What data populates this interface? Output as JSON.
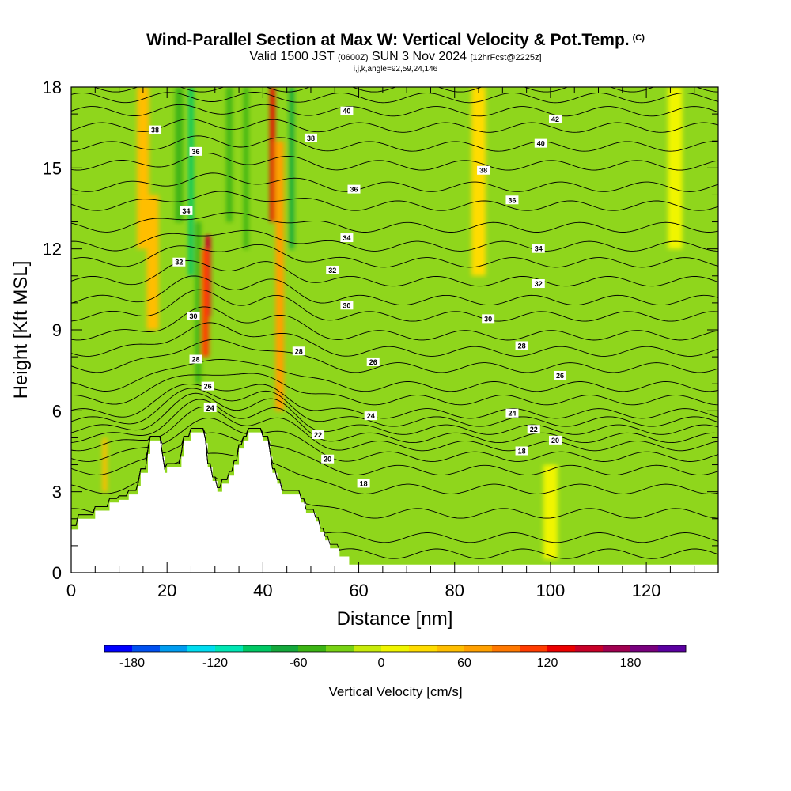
{
  "header": {
    "title": "Wind-Parallel Section at Max W: Vertical Velocity & Pot.Temp.",
    "title_mark": "(C)",
    "valid_prefix": "Valid 1500 JST",
    "valid_utc": "(0600Z)",
    "valid_date": "SUN 3 Nov 2024",
    "forecast": "[12hrFcst@2225z]",
    "indices": "i,j,k,angle=92,59,24,146"
  },
  "chart_data": {
    "type": "heatmap",
    "xlabel": "Distance [nm]",
    "ylabel": "Height [Kft MSL]",
    "xlim": [
      0,
      135
    ],
    "ylim": [
      0,
      18
    ],
    "x_ticks": [
      "0",
      "20",
      "40",
      "60",
      "80",
      "100",
      "120"
    ],
    "x_tick_values": [
      0,
      20,
      40,
      60,
      80,
      100,
      120
    ],
    "y_ticks": [
      "0",
      "3",
      "6",
      "9",
      "12",
      "15",
      "18"
    ],
    "y_tick_values": [
      0,
      3,
      6,
      9,
      12,
      15,
      18
    ],
    "x_minor_step": 5,
    "y_minor_step": 1,
    "background_color": "#8fd61c",
    "colorbar": {
      "title": "Vertical Velocity [cm/s]",
      "min": -200,
      "max": 220,
      "step": 20,
      "tick_labels": [
        "-180",
        "-120",
        "-60",
        "0",
        "60",
        "120",
        "180"
      ],
      "tick_values": [
        -180,
        -120,
        -60,
        0,
        60,
        120,
        180
      ],
      "colors": [
        "#0000ff",
        "#0050f0",
        "#009cf0",
        "#00dcf0",
        "#00e6b4",
        "#00c864",
        "#14a83c",
        "#3cb414",
        "#78d214",
        "#c8eb0a",
        "#f0f500",
        "#ffdc00",
        "#ffbe00",
        "#ffa000",
        "#ff7800",
        "#ff3c00",
        "#eb0000",
        "#c80028",
        "#a00050",
        "#78007d",
        "#5a00a0"
      ]
    },
    "velocity_field": [
      {
        "x": 15,
        "y_range": [
          12,
          18
        ],
        "w": 50,
        "width": 2.5
      },
      {
        "x": 17,
        "y_range": [
          9,
          14
        ],
        "w": 40,
        "width": 2.5
      },
      {
        "x": 22.5,
        "y_range": [
          13,
          18
        ],
        "w": -50,
        "width": 1.6
      },
      {
        "x": 25,
        "y_range": [
          11,
          18
        ],
        "w": -100,
        "width": 1.0
      },
      {
        "x": 26.5,
        "y_range": [
          7,
          13
        ],
        "w": -55,
        "width": 1.2
      },
      {
        "x": 28.5,
        "y_range": [
          9.5,
          12.5
        ],
        "w": 150,
        "width": 1.2
      },
      {
        "x": 28,
        "y_range": [
          8,
          12
        ],
        "w": 100,
        "width": 1.5
      },
      {
        "x": 33,
        "y_range": [
          13,
          18
        ],
        "w": -60,
        "width": 1.2
      },
      {
        "x": 36.5,
        "y_range": [
          12,
          18
        ],
        "w": -60,
        "width": 1.0
      },
      {
        "x": 42,
        "y_range": [
          13,
          18
        ],
        "w": 130,
        "width": 1.0
      },
      {
        "x": 43.5,
        "y_range": [
          6,
          16
        ],
        "w": 60,
        "width": 1.8
      },
      {
        "x": 46,
        "y_range": [
          12,
          18
        ],
        "w": -75,
        "width": 1.0
      },
      {
        "x": 7,
        "y_range": [
          3,
          5
        ],
        "w": 40,
        "width": 1.0
      },
      {
        "x": 85,
        "y_range": [
          11,
          18
        ],
        "w": 20,
        "width": 3.0
      },
      {
        "x": 100,
        "y_range": [
          0.5,
          4
        ],
        "w": 15,
        "width": 3.0
      },
      {
        "x": 126,
        "y_range": [
          12,
          18
        ],
        "w": 15,
        "width": 3.0
      }
    ],
    "terrain": [
      [
        0,
        1.6
      ],
      [
        1.5,
        1.6
      ],
      [
        1.5,
        2
      ],
      [
        5,
        2
      ],
      [
        5,
        2.3
      ],
      [
        8,
        2.3
      ],
      [
        8,
        2.6
      ],
      [
        10,
        2.6
      ],
      [
        10,
        2.7
      ],
      [
        12,
        2.7
      ],
      [
        12,
        2.9
      ],
      [
        14,
        2.9
      ],
      [
        14,
        3.2
      ],
      [
        14.5,
        3.2
      ],
      [
        14.5,
        3.7
      ],
      [
        16,
        3.7
      ],
      [
        16,
        4.4
      ],
      [
        16.5,
        4.4
      ],
      [
        16.5,
        4.9
      ],
      [
        19,
        4.9
      ],
      [
        19,
        4.3
      ],
      [
        19.5,
        4.3
      ],
      [
        19.5,
        3.7
      ],
      [
        20,
        3.7
      ],
      [
        20,
        3.9
      ],
      [
        23,
        3.9
      ],
      [
        23,
        4.3
      ],
      [
        23.5,
        4.3
      ],
      [
        23.5,
        4.9
      ],
      [
        25,
        4.9
      ],
      [
        25,
        5.2
      ],
      [
        28,
        5.2
      ],
      [
        28,
        4.8
      ],
      [
        28.5,
        4.8
      ],
      [
        28.5,
        3.9
      ],
      [
        29.5,
        3.9
      ],
      [
        29.5,
        3.4
      ],
      [
        30.5,
        3.4
      ],
      [
        30.5,
        3.0
      ],
      [
        31.5,
        3.0
      ],
      [
        31.5,
        3.3
      ],
      [
        33,
        3.3
      ],
      [
        33,
        3.6
      ],
      [
        34,
        3.6
      ],
      [
        34,
        4.0
      ],
      [
        35,
        4.0
      ],
      [
        35,
        4.6
      ],
      [
        36,
        4.6
      ],
      [
        36,
        4.9
      ],
      [
        37,
        4.9
      ],
      [
        37,
        5.2
      ],
      [
        40,
        5.2
      ],
      [
        40,
        4.9
      ],
      [
        41.5,
        4.9
      ],
      [
        41.5,
        4.3
      ],
      [
        42,
        4.3
      ],
      [
        42,
        3.7
      ],
      [
        43,
        3.7
      ],
      [
        43,
        3.3
      ],
      [
        44,
        3.3
      ],
      [
        44,
        2.9
      ],
      [
        48,
        2.9
      ],
      [
        48,
        2.6
      ],
      [
        49,
        2.6
      ],
      [
        49,
        2.2
      ],
      [
        51,
        2.2
      ],
      [
        51,
        1.9
      ],
      [
        52,
        1.9
      ],
      [
        52,
        1.5
      ],
      [
        53,
        1.5
      ],
      [
        53,
        1.2
      ],
      [
        54,
        1.2
      ],
      [
        54,
        0.9
      ],
      [
        56,
        0.9
      ],
      [
        56,
        0.6
      ],
      [
        58,
        0.6
      ],
      [
        58,
        0.3
      ],
      [
        135,
        0.3
      ]
    ],
    "isentrope_values": [
      14,
      15,
      16,
      17,
      18,
      19,
      20,
      21,
      22,
      23,
      24,
      25,
      26,
      27,
      28,
      29,
      30,
      31,
      32,
      33,
      34,
      35,
      36,
      37,
      38,
      39,
      40,
      41,
      42,
      43
    ],
    "isentrope_heights": [
      0.7,
      1.3,
      2.2,
      3.1,
      3.8,
      4.3,
      4.7,
      5.0,
      5.3,
      5.6,
      5.9,
      6.4,
      6.9,
      7.6,
      8.2,
      8.8,
      9.5,
      10.1,
      10.8,
      11.5,
      12.1,
      12.8,
      13.6,
      14.3,
      15.1,
      15.8,
      16.5,
      17.1,
      17.6,
      18.0
    ],
    "contour_labels": [
      {
        "text": "38",
        "x": 17.5,
        "y": 16.4
      },
      {
        "text": "36",
        "x": 26,
        "y": 15.6
      },
      {
        "text": "34",
        "x": 24,
        "y": 13.4
      },
      {
        "text": "32",
        "x": 22.5,
        "y": 11.5
      },
      {
        "text": "30",
        "x": 25.5,
        "y": 9.5
      },
      {
        "text": "28",
        "x": 26,
        "y": 7.9
      },
      {
        "text": "26",
        "x": 28.5,
        "y": 6.9
      },
      {
        "text": "24",
        "x": 29,
        "y": 6.1
      },
      {
        "text": "40",
        "x": 57.5,
        "y": 17.1
      },
      {
        "text": "38",
        "x": 50,
        "y": 16.1
      },
      {
        "text": "36",
        "x": 59,
        "y": 14.2
      },
      {
        "text": "34",
        "x": 57.5,
        "y": 12.4
      },
      {
        "text": "32",
        "x": 54.5,
        "y": 11.2
      },
      {
        "text": "30",
        "x": 57.5,
        "y": 9.9
      },
      {
        "text": "28",
        "x": 47.5,
        "y": 8.2
      },
      {
        "text": "26",
        "x": 63,
        "y": 7.8
      },
      {
        "text": "24",
        "x": 62.5,
        "y": 5.8
      },
      {
        "text": "22",
        "x": 51.5,
        "y": 5.1
      },
      {
        "text": "20",
        "x": 53.5,
        "y": 4.2
      },
      {
        "text": "18",
        "x": 61,
        "y": 3.3
      },
      {
        "text": "42",
        "x": 101,
        "y": 16.8
      },
      {
        "text": "40",
        "x": 98,
        "y": 15.9
      },
      {
        "text": "38",
        "x": 86,
        "y": 14.9
      },
      {
        "text": "36",
        "x": 92,
        "y": 13.8
      },
      {
        "text": "34",
        "x": 97.5,
        "y": 12.0
      },
      {
        "text": "32",
        "x": 97.5,
        "y": 10.7
      },
      {
        "text": "30",
        "x": 87,
        "y": 9.4
      },
      {
        "text": "28",
        "x": 94,
        "y": 8.4
      },
      {
        "text": "26",
        "x": 102,
        "y": 7.3
      },
      {
        "text": "24",
        "x": 92,
        "y": 5.9
      },
      {
        "text": "22",
        "x": 96.5,
        "y": 5.3
      },
      {
        "text": "20",
        "x": 101,
        "y": 4.9
      },
      {
        "text": "18",
        "x": 94,
        "y": 4.5
      }
    ]
  }
}
